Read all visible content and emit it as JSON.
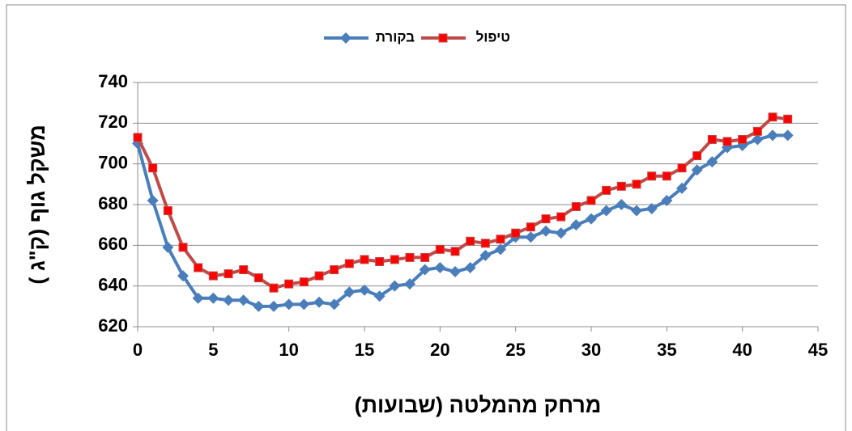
{
  "chart_data": {
    "type": "line",
    "x_label": "מרחק מהמלטה (שבועות)",
    "y_label": "משקל גוף (ק\"ג )",
    "x": [
      0,
      1,
      2,
      3,
      4,
      5,
      6,
      7,
      8,
      9,
      10,
      11,
      12,
      13,
      14,
      15,
      16,
      17,
      18,
      19,
      20,
      21,
      22,
      23,
      24,
      25,
      26,
      27,
      28,
      29,
      30,
      31,
      32,
      33,
      34,
      35,
      36,
      37,
      38,
      39,
      40,
      41,
      42,
      43
    ],
    "series": [
      {
        "name": "בקורת",
        "color": "#4a7ebb",
        "marker": "diamond",
        "values": [
          710,
          682,
          659,
          645,
          634,
          634,
          633,
          633,
          630,
          630,
          631,
          631,
          632,
          631,
          637,
          638,
          635,
          640,
          641,
          648,
          649,
          647,
          649,
          655,
          658,
          664,
          664,
          667,
          666,
          670,
          673,
          677,
          680,
          677,
          678,
          682,
          688,
          697,
          701,
          708,
          709,
          712,
          714,
          714
        ]
      },
      {
        "name": "טיפול",
        "color": "#be4b48",
        "marker": "square",
        "values": [
          713,
          698,
          677,
          659,
          649,
          645,
          646,
          648,
          644,
          639,
          641,
          642,
          645,
          648,
          651,
          653,
          652,
          653,
          654,
          654,
          658,
          657,
          662,
          661,
          663,
          666,
          669,
          673,
          674,
          679,
          682,
          687,
          689,
          690,
          694,
          694,
          698,
          704,
          712,
          711,
          712,
          716,
          723,
          722
        ]
      }
    ],
    "xlim": [
      0,
      45
    ],
    "xticks": [
      0,
      5,
      10,
      15,
      20,
      25,
      30,
      35,
      40,
      45
    ],
    "ylim": [
      620,
      740
    ],
    "yticks": [
      620,
      640,
      660,
      680,
      700,
      720,
      740
    ],
    "grid": true,
    "legend": "top"
  }
}
